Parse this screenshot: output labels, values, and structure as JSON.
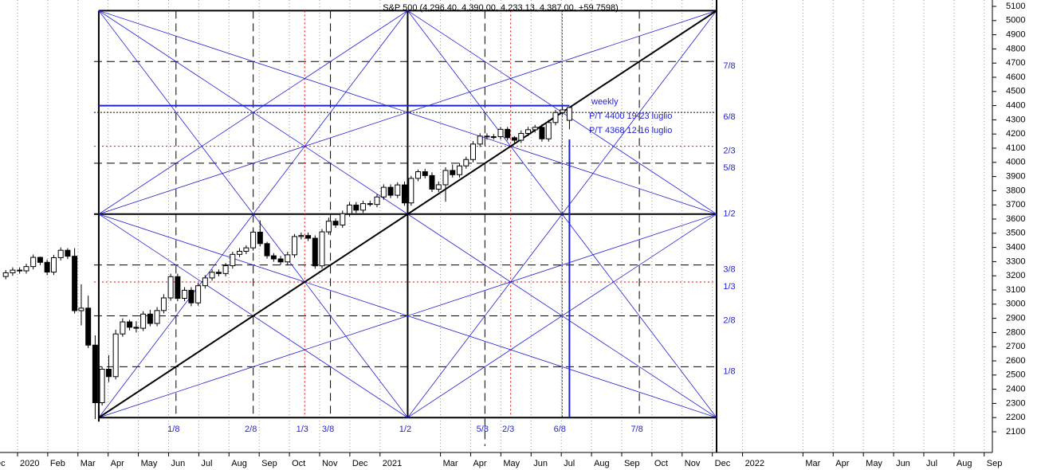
{
  "chart_data": {
    "type": "candlestick",
    "title": "S&P 500 (4,296.40, 4,390.00, 4,233.13, 4,387.00, +59.7598)",
    "x": [
      -0.39,
      -0.16,
      0.07,
      0.29,
      0.52,
      0.75,
      0.98,
      1.2,
      1.43,
      1.66,
      1.89,
      2.11,
      2.34,
      2.57,
      2.8,
      3.02,
      3.25,
      3.48,
      3.71,
      3.93,
      4.16,
      4.39,
      4.62,
      4.84,
      5.07,
      5.3,
      5.53,
      5.75,
      5.98,
      6.21,
      6.44,
      6.66,
      6.89,
      7.12,
      7.35,
      7.57,
      7.8,
      8.03,
      8.26,
      8.48,
      8.71,
      8.94,
      9.17,
      9.39,
      9.62,
      9.85,
      10.08,
      10.3,
      10.53,
      10.76,
      10.99,
      11.21,
      11.44,
      11.67,
      11.9,
      12.12,
      12.35,
      12.58,
      12.81,
      13.03,
      13.26,
      13.49,
      13.72,
      13.94,
      14.17,
      14.4,
      14.63,
      14.85,
      15.08,
      15.31,
      15.54,
      15.76,
      15.99,
      16.22,
      16.45,
      16.67,
      16.9,
      17.13,
      17.36,
      17.58,
      17.81,
      18.04,
      18.27
    ],
    "open": [
      3195,
      3221,
      3240,
      3235,
      3265,
      3330,
      3295,
      3226,
      3328,
      3380,
      3338,
      2954,
      2972,
      2711,
      2305,
      2541,
      2489,
      2790,
      2875,
      2837,
      2830,
      2930,
      2864,
      2955,
      3044,
      3194,
      3041,
      3098,
      3009,
      3130,
      3185,
      3225,
      3216,
      3271,
      3351,
      3373,
      3397,
      3508,
      3427,
      3341,
      3319,
      3298,
      3348,
      3477,
      3484,
      3465,
      3270,
      3510,
      3585,
      3558,
      3638,
      3699,
      3663,
      3709,
      3703,
      3756,
      3824,
      3768,
      3841,
      3714,
      3887,
      3934,
      3907,
      3811,
      3842,
      3943,
      3913,
      3975,
      4020,
      4129,
      4185,
      4180,
      4181,
      4233,
      4174,
      4156,
      4204,
      4230,
      4247,
      4166,
      4281,
      4352,
      4296.4
    ],
    "high": [
      3241,
      3260,
      3260,
      3285,
      3350,
      3335,
      3315,
      3348,
      3400,
      3395,
      3395,
      3140,
      3060,
      2780,
      2560,
      2640,
      2820,
      2900,
      2890,
      2880,
      2950,
      2960,
      2980,
      3070,
      3215,
      3215,
      3120,
      3120,
      3150,
      3205,
      3245,
      3245,
      3290,
      3370,
      3395,
      3415,
      3525,
      3590,
      3440,
      3360,
      3340,
      3370,
      3495,
      3505,
      3505,
      3485,
      3530,
      3610,
      3605,
      3660,
      3720,
      3720,
      3730,
      3730,
      3775,
      3845,
      3845,
      3860,
      3865,
      3905,
      3950,
      3955,
      3930,
      3865,
      3965,
      3985,
      3995,
      4040,
      4150,
      4205,
      4205,
      4200,
      4250,
      4250,
      4185,
      4225,
      4250,
      4265,
      4270,
      4300,
      4370,
      4390,
      4390
    ],
    "low": [
      3175,
      3200,
      3215,
      3215,
      3245,
      3275,
      3205,
      3206,
      3308,
      3318,
      2934,
      2850,
      2690,
      2190,
      2285,
      2450,
      2469,
      2770,
      2815,
      2800,
      2810,
      2844,
      2844,
      2935,
      3024,
      3021,
      3021,
      2985,
      2989,
      3110,
      3165,
      3196,
      3196,
      3251,
      3331,
      3353,
      3377,
      3407,
      3321,
      3299,
      3278,
      3278,
      3328,
      3457,
      3445,
      3250,
      3250,
      3490,
      3538,
      3538,
      3618,
      3643,
      3643,
      3689,
      3683,
      3736,
      3748,
      3748,
      3694,
      3694,
      3867,
      3887,
      3791,
      3791,
      3722,
      3893,
      3893,
      3955,
      4000,
      4109,
      4160,
      4160,
      4161,
      4154,
      4136,
      4136,
      4184,
      4210,
      4146,
      4146,
      4261,
      4332,
      4233.13
    ],
    "close": [
      3221,
      3240,
      3235,
      3265,
      3330,
      3295,
      3226,
      3328,
      3380,
      3338,
      2954,
      2972,
      2711,
      2305,
      2541,
      2489,
      2790,
      2875,
      2837,
      2830,
      2930,
      2864,
      2955,
      3044,
      3194,
      3041,
      3098,
      3009,
      3130,
      3185,
      3225,
      3216,
      3271,
      3351,
      3373,
      3397,
      3508,
      3427,
      3341,
      3319,
      3298,
      3348,
      3477,
      3484,
      3465,
      3270,
      3510,
      3585,
      3558,
      3638,
      3699,
      3663,
      3709,
      3703,
      3756,
      3824,
      3768,
      3841,
      3714,
      3887,
      3934,
      3907,
      3811,
      3842,
      3943,
      3913,
      3975,
      4020,
      4129,
      4185,
      4180,
      4181,
      4233,
      4174,
      4156,
      4204,
      4230,
      4247,
      4166,
      4281,
      4352,
      4370,
      4387
    ],
    "xlim": [
      -0.58,
      32.27
    ],
    "ylim": [
      1954,
      5145
    ],
    "yticks": [
      2100,
      2200,
      2300,
      2400,
      2500,
      2600,
      2700,
      2800,
      2900,
      3000,
      3100,
      3200,
      3300,
      3400,
      3500,
      3600,
      3700,
      3800,
      3900,
      4000,
      4100,
      4200,
      4300,
      4400,
      4500,
      4600,
      4700,
      4800,
      4900,
      5000,
      5100
    ],
    "xticks": [
      {
        "value": -1,
        "label": "Dec"
      },
      {
        "value": 0,
        "label": "2020"
      },
      {
        "value": 1,
        "label": "Feb"
      },
      {
        "value": 2,
        "label": "Mar"
      },
      {
        "value": 3,
        "label": "Apr"
      },
      {
        "value": 4,
        "label": "May"
      },
      {
        "value": 5,
        "label": "Jun"
      },
      {
        "value": 6,
        "label": "Jul"
      },
      {
        "value": 7,
        "label": "Aug"
      },
      {
        "value": 8,
        "label": "Sep"
      },
      {
        "value": 9,
        "label": "Oct"
      },
      {
        "value": 10,
        "label": "Nov"
      },
      {
        "value": 11,
        "label": "Dec"
      },
      {
        "value": 12,
        "label": "2021"
      },
      {
        "value": 14,
        "label": "Mar"
      },
      {
        "value": 15,
        "label": "Apr"
      },
      {
        "value": 16,
        "label": "May"
      },
      {
        "value": 17,
        "label": "Jun"
      },
      {
        "value": 18,
        "label": "Jul"
      },
      {
        "value": 19,
        "label": "Aug"
      },
      {
        "value": 20,
        "label": "Sep"
      },
      {
        "value": 21,
        "label": "Oct"
      },
      {
        "value": 22,
        "label": "Nov"
      },
      {
        "value": 23,
        "label": "Dec"
      },
      {
        "value": 24,
        "label": "2022"
      },
      {
        "value": 26,
        "label": "Mar"
      },
      {
        "value": 27,
        "label": "Apr"
      },
      {
        "value": 28,
        "label": "May"
      },
      {
        "value": 29,
        "label": "Jun"
      },
      {
        "value": 30,
        "label": "Jul"
      },
      {
        "value": 31,
        "label": "Aug"
      },
      {
        "value": 32,
        "label": "Sep"
      }
    ],
    "grid": true,
    "gann": {
      "time": [
        2.69,
        23.14
      ],
      "price": [
        2200,
        5070
      ],
      "color": "#1f1fd6",
      "price_levels": [
        {
          "value": 0.125,
          "label": "1/8"
        },
        {
          "value": 0.25,
          "label": "2/8"
        },
        {
          "value": 0.3333,
          "label": "1/3"
        },
        {
          "value": 0.375,
          "label": "3/8"
        },
        {
          "value": 0.5,
          "label": "1/2"
        },
        {
          "value": 0.625,
          "label": "5/8"
        },
        {
          "value": 0.6667,
          "label": "2/3"
        },
        {
          "value": 0.75,
          "label": "6/8"
        },
        {
          "value": 0.875,
          "label": "7/8"
        }
      ],
      "time_levels": [
        {
          "value": 0.125,
          "label": "1/8"
        },
        {
          "value": 0.25,
          "label": "2/8"
        },
        {
          "value": 0.3333,
          "label": "1/3"
        },
        {
          "value": 0.375,
          "label": "3/8"
        },
        {
          "value": 0.5,
          "label": "1/2"
        },
        {
          "value": 0.625,
          "label": "5/8"
        },
        {
          "value": 0.6667,
          "label": "2/3"
        },
        {
          "value": 0.75,
          "label": "6/8"
        },
        {
          "value": 0.875,
          "label": "7/8"
        }
      ]
    },
    "annotations": [
      {
        "text": "weekly"
      },
      {
        "text": "P/T 4400  19-23 luglio",
        "value": 4400
      },
      {
        "text": "P/T 4368  12-16 luglio"
      }
    ]
  }
}
